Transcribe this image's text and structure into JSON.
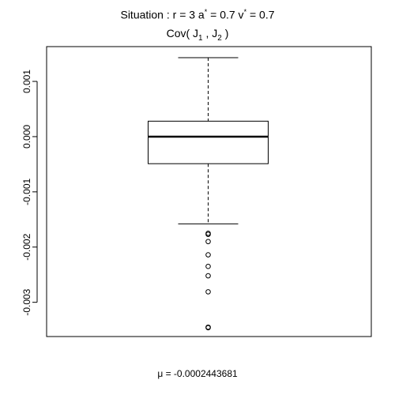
{
  "chart_data": {
    "type": "boxplot",
    "title": {
      "prefix": "Situation :  ",
      "r_label": "r = 3",
      "a_label": " a",
      "a_sup": "*",
      "a_value": " = 0.7",
      "v_label": " v",
      "v_sup": "*",
      "v_value": " = 0.7",
      "subtitle_prefix": "Cov( J",
      "sub1": "1",
      "subtitle_mid": " , J",
      "sub2": "2",
      "subtitle_suffix": " )"
    },
    "xlabel": "μ = -0.0002443681",
    "ylim": [
      -0.00362,
      0.00163
    ],
    "yticks": [
      0.001,
      0.0,
      -0.001,
      -0.002,
      -0.003
    ],
    "ytick_labels": [
      "0.001",
      "0.000",
      "-0.001",
      "-0.002",
      "-0.003"
    ],
    "box": {
      "whisker_high": 0.00143,
      "q3": 0.00028,
      "median": 0.0,
      "q1": -0.00049,
      "whisker_low": -0.00158
    },
    "outliers": [
      -0.00175,
      -0.00177,
      -0.0019,
      -0.00214,
      -0.00235,
      -0.00252,
      -0.00281,
      -0.00345,
      -0.00346
    ],
    "grid": false,
    "legend": false
  }
}
